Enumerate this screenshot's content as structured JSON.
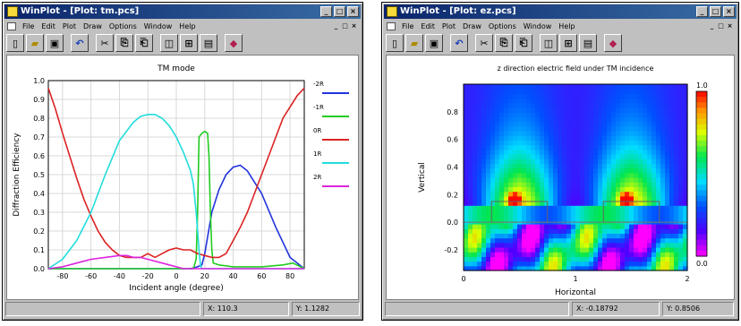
{
  "windows": [
    {
      "title": "WinPlot - [Plot: tm.pcs]",
      "menu": [
        "File",
        "Edit",
        "Plot",
        "Draw",
        "Options",
        "Window",
        "Help"
      ],
      "status": {
        "x": "X: 110.3",
        "y": "Y: 1.1282"
      }
    },
    {
      "title": "WinPlot - [Plot: ez.pcs]",
      "menu": [
        "File",
        "Edit",
        "Plot",
        "Draw",
        "Options",
        "Window",
        "Help"
      ],
      "status": {
        "x": "X: -0.18792",
        "y": "Y: 0.8506"
      }
    }
  ],
  "colors": {
    "title_bar": "#0a246a",
    "chrome": "#c0c0c0"
  },
  "chart_data": [
    {
      "type": "line",
      "title": "TM mode",
      "xlabel": "Incident angle (degree)",
      "ylabel": "Diffraction Efficiency",
      "xlim": [
        -90,
        90
      ],
      "ylim": [
        0,
        1.0
      ],
      "xticks": [
        -80,
        -60,
        -40,
        -20,
        0,
        20,
        40,
        60,
        80
      ],
      "yticks": [
        0.0,
        0.1,
        0.2,
        0.3,
        0.4,
        0.5,
        0.6,
        0.7,
        0.8,
        0.9,
        1.0
      ],
      "grid": true,
      "legend_placement": "right",
      "series": [
        {
          "name": "-2R",
          "color": "#2233dd",
          "x": [
            -90,
            10,
            15,
            18,
            20,
            25,
            30,
            35,
            40,
            45,
            50,
            60,
            70,
            80,
            90
          ],
          "y": [
            0,
            0,
            0.01,
            0.02,
            0.08,
            0.3,
            0.42,
            0.5,
            0.54,
            0.55,
            0.52,
            0.4,
            0.22,
            0.06,
            0.0
          ]
        },
        {
          "name": "-1R",
          "color": "#22cc22",
          "x": [
            -90,
            12,
            14,
            15,
            16,
            18,
            20,
            22,
            23,
            24,
            25,
            26,
            30,
            40,
            60,
            75,
            82,
            90
          ],
          "y": [
            0,
            0.0,
            0.05,
            0.3,
            0.7,
            0.72,
            0.73,
            0.72,
            0.6,
            0.3,
            0.1,
            0.03,
            0.02,
            0.01,
            0.01,
            0.02,
            0.03,
            0.0
          ]
        },
        {
          "name": "0R",
          "color": "#dd2222",
          "x": [
            -90,
            -85,
            -80,
            -75,
            -70,
            -65,
            -60,
            -55,
            -50,
            -45,
            -40,
            -35,
            -30,
            -25,
            -20,
            -15,
            -10,
            -5,
            0,
            5,
            10,
            15,
            20,
            25,
            30,
            35,
            40,
            45,
            50,
            55,
            60,
            65,
            70,
            75,
            80,
            85,
            90
          ],
          "y": [
            0.96,
            0.85,
            0.72,
            0.6,
            0.48,
            0.37,
            0.28,
            0.2,
            0.14,
            0.1,
            0.07,
            0.06,
            0.06,
            0.06,
            0.08,
            0.06,
            0.08,
            0.1,
            0.11,
            0.1,
            0.1,
            0.08,
            0.07,
            0.06,
            0.06,
            0.08,
            0.15,
            0.22,
            0.3,
            0.4,
            0.5,
            0.6,
            0.7,
            0.8,
            0.86,
            0.92,
            0.96
          ]
        },
        {
          "name": "1R",
          "color": "#22dddd",
          "x": [
            -90,
            -80,
            -70,
            -60,
            -50,
            -40,
            -30,
            -25,
            -20,
            -15,
            -10,
            -5,
            0,
            5,
            10,
            12,
            14,
            16,
            17,
            18,
            90
          ],
          "y": [
            0.0,
            0.05,
            0.15,
            0.3,
            0.5,
            0.68,
            0.78,
            0.81,
            0.82,
            0.82,
            0.8,
            0.76,
            0.7,
            0.62,
            0.52,
            0.45,
            0.3,
            0.1,
            0.02,
            0.0,
            0.0
          ]
        },
        {
          "name": "2R",
          "color": "#dd22dd",
          "x": [
            -90,
            -80,
            -70,
            -60,
            -50,
            -40,
            -35,
            -30,
            -25,
            -20,
            -15,
            -10,
            -5,
            0,
            5,
            10,
            90
          ],
          "y": [
            0.0,
            0.01,
            0.03,
            0.05,
            0.06,
            0.07,
            0.07,
            0.06,
            0.06,
            0.05,
            0.04,
            0.03,
            0.02,
            0.01,
            0.0,
            0.0,
            0.0
          ]
        }
      ]
    },
    {
      "type": "heatmap",
      "title": "z direction electric field under TM incidence",
      "xlabel": "Horizontal",
      "ylabel": "Vertical",
      "xlim": [
        0,
        2
      ],
      "ylim": [
        -0.35,
        1.0
      ],
      "xticks": [
        0,
        1,
        2
      ],
      "yticks": [
        -0.2,
        0.0,
        0.2,
        0.4,
        0.6,
        0.8
      ],
      "colorbar": {
        "min": 0.0,
        "max": 1.0,
        "labels": [
          "1.0",
          "0.0"
        ]
      }
    }
  ]
}
